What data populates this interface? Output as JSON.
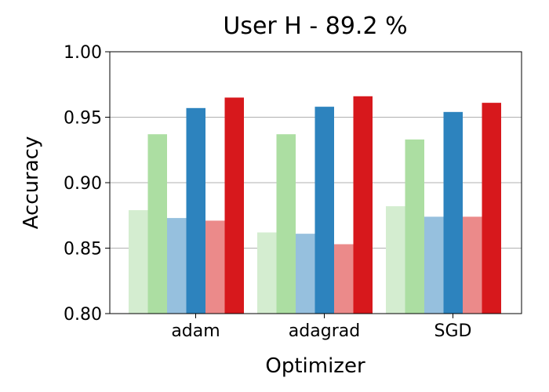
{
  "chart_data": {
    "type": "bar",
    "title": "User H - 89.2 %",
    "xlabel": "Optimizer",
    "ylabel": "Accuracy",
    "ylim": [
      0.8,
      1.0
    ],
    "yticks": [
      "0.80",
      "0.85",
      "0.90",
      "0.95",
      "1.00"
    ],
    "ytick_values": [
      0.8,
      0.85,
      0.9,
      0.95,
      1.0
    ],
    "categories": [
      "adam",
      "adagrad",
      "SGD"
    ],
    "grid": "horizontal",
    "legend": "none",
    "series": [
      {
        "color": "#d4edd0",
        "values": [
          0.879,
          0.862,
          0.882
        ]
      },
      {
        "color": "#acdea2",
        "values": [
          0.937,
          0.937,
          0.933
        ]
      },
      {
        "color": "#96c0de",
        "values": [
          0.873,
          0.861,
          0.874
        ]
      },
      {
        "color": "#2d83be",
        "values": [
          0.957,
          0.958,
          0.954
        ]
      },
      {
        "color": "#eb8a8a",
        "values": [
          0.871,
          0.853,
          0.874
        ]
      },
      {
        "color": "#d7181c",
        "values": [
          0.965,
          0.966,
          0.961
        ]
      }
    ]
  }
}
